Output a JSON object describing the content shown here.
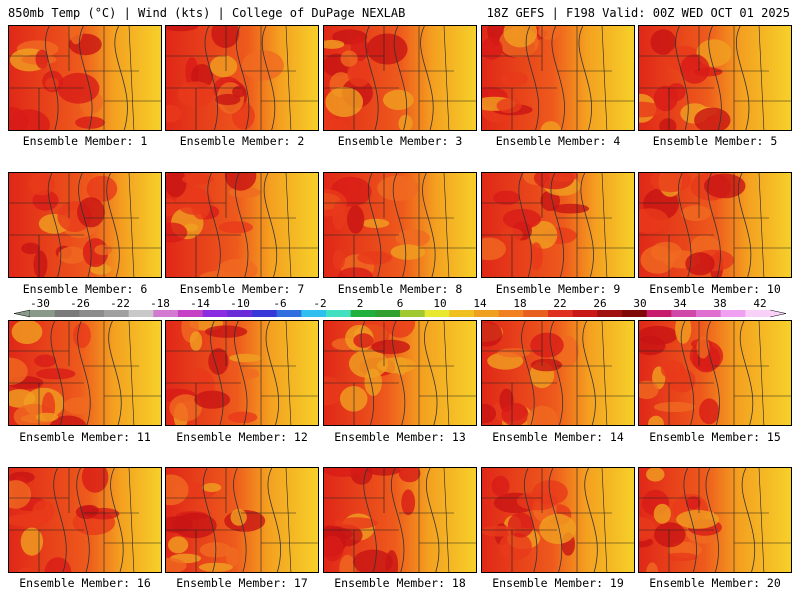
{
  "header": {
    "title": "850mb Temp (°C) | Wind (kts) | College of DuPage NEXLAB",
    "run": "18Z GEFS | F198 Valid: 00Z WED OCT 01 2025"
  },
  "colorbar": {
    "labels": [
      "-30",
      "-26",
      "-22",
      "-18",
      "-14",
      "-10",
      "-6",
      "-2",
      "2",
      "6",
      "10",
      "14",
      "18",
      "22",
      "26",
      "30",
      "34",
      "38",
      "42"
    ],
    "colors": [
      "#8a9a8a",
      "#7a7a7a",
      "#8c8c8c",
      "#a0a0a0",
      "#c8c8c8",
      "#d27ad2",
      "#c640c6",
      "#8a2be2",
      "#6a2bd8",
      "#3838d8",
      "#2f6fe0",
      "#30c0f0",
      "#40e0c0",
      "#20b040",
      "#30a030",
      "#a0c830",
      "#e8e830",
      "#f0c020",
      "#f0a020",
      "#f08020",
      "#e86020",
      "#e03020",
      "#c81818",
      "#a01010",
      "#800808",
      "#c81c6c",
      "#d048a8",
      "#e070d0",
      "#f0a0f0",
      "#f8d0f8"
    ]
  },
  "panels": [
    {
      "label": "Ensemble Member: 1",
      "intensity": 0.6
    },
    {
      "label": "Ensemble Member: 2",
      "intensity": 0.8
    },
    {
      "label": "Ensemble Member: 3",
      "intensity": 0.7
    },
    {
      "label": "Ensemble Member: 4",
      "intensity": 0.6
    },
    {
      "label": "Ensemble Member: 5",
      "intensity": 0.55
    },
    {
      "label": "Ensemble Member: 6",
      "intensity": 0.8
    },
    {
      "label": "Ensemble Member: 7",
      "intensity": 0.6
    },
    {
      "label": "Ensemble Member: 8",
      "intensity": 0.75
    },
    {
      "label": "Ensemble Member: 9",
      "intensity": 0.8
    },
    {
      "label": "Ensemble Member: 10",
      "intensity": 0.7
    },
    {
      "label": "Ensemble Member: 11",
      "intensity": 0.6
    },
    {
      "label": "Ensemble Member: 12",
      "intensity": 0.6
    },
    {
      "label": "Ensemble Member: 13",
      "intensity": 0.45
    },
    {
      "label": "Ensemble Member: 14",
      "intensity": 0.65
    },
    {
      "label": "Ensemble Member: 15",
      "intensity": 0.45
    },
    {
      "label": "Ensemble Member: 16",
      "intensity": 0.75
    },
    {
      "label": "Ensemble Member: 17",
      "intensity": 0.55
    },
    {
      "label": "Ensemble Member: 18",
      "intensity": 0.6
    },
    {
      "label": "Ensemble Member: 19",
      "intensity": 0.6
    },
    {
      "label": "Ensemble Member: 20",
      "intensity": 0.5
    }
  ]
}
